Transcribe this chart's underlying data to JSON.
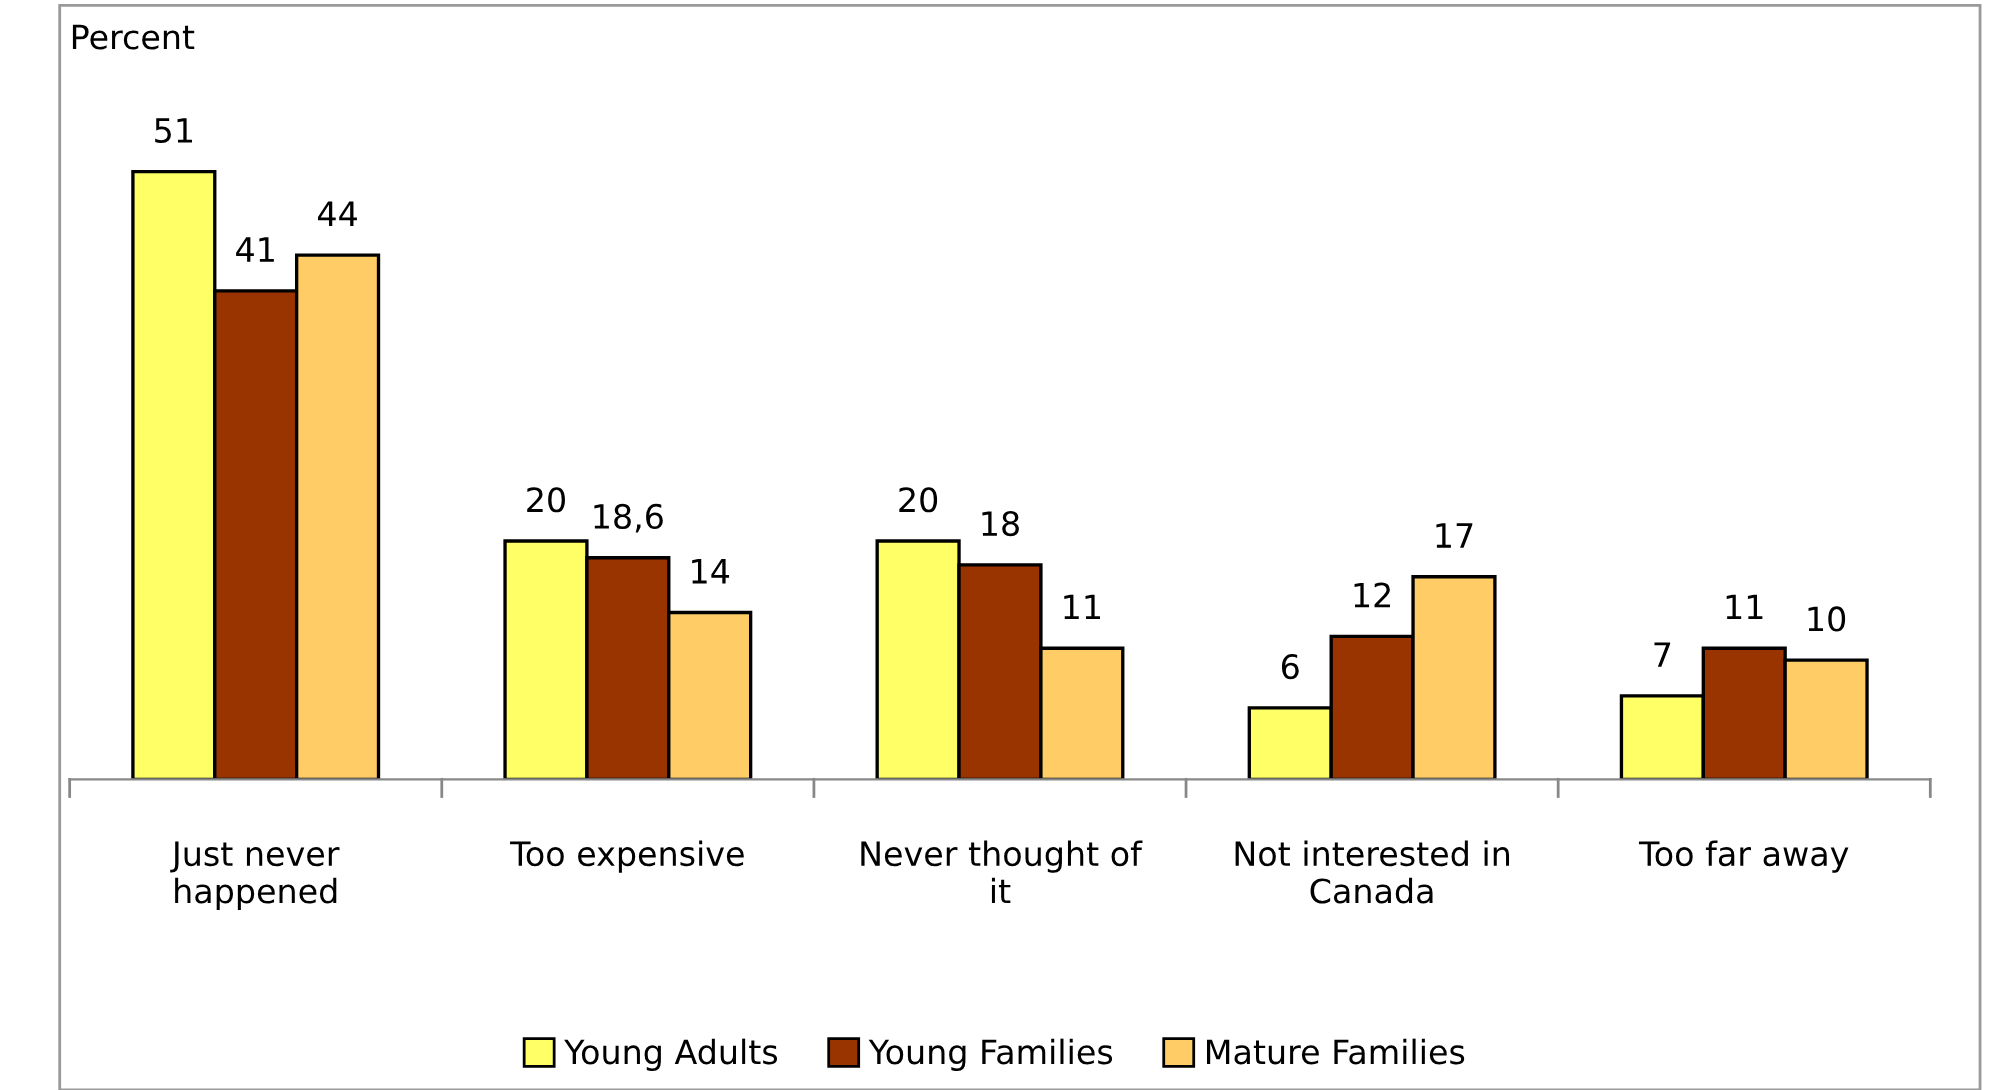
{
  "chart_data": {
    "type": "bar",
    "ylabel": "Percent",
    "categories": [
      "Just never\nhappened",
      "Too expensive",
      "Never thought of\nit",
      "Not interested in\nCanada",
      "Too far away"
    ],
    "series": [
      {
        "name": "Young Adults",
        "color": "#ffff66",
        "values": [
          51,
          20,
          20,
          6,
          7
        ],
        "value_labels": [
          "51",
          "20",
          "20",
          "6",
          "7"
        ]
      },
      {
        "name": "Young Families",
        "color": "#993300",
        "values": [
          41,
          18.6,
          18,
          12,
          11
        ],
        "value_labels": [
          "41",
          "18,6",
          "18",
          "12",
          "11"
        ]
      },
      {
        "name": "Mature Families",
        "color": "#ffcc66",
        "values": [
          44,
          14,
          11,
          17,
          10
        ],
        "value_labels": [
          "44",
          "14",
          "11",
          "17",
          "10"
        ]
      }
    ],
    "legend": "bottom",
    "grid": false,
    "tick_labels": "x"
  }
}
